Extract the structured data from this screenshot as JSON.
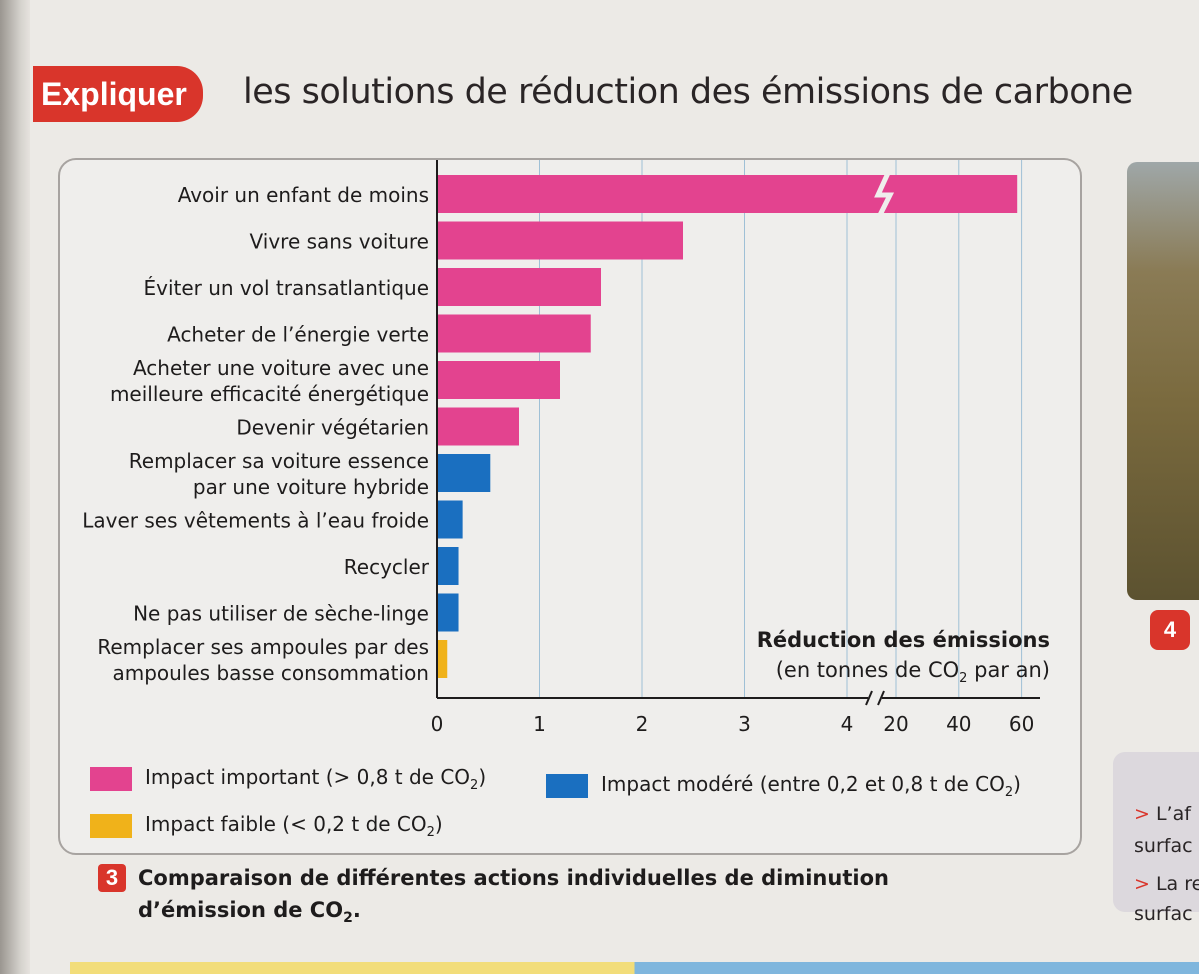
{
  "header": {
    "tag": "Expliquer",
    "title": "les solutions de réduction des émissions de carbone"
  },
  "colors": {
    "important": "#e3438f",
    "modere": "#1a6fc0",
    "faible": "#f0b21a",
    "accent": "#d9352b"
  },
  "chart_data": {
    "type": "bar",
    "orientation": "horizontal",
    "categories": [
      "Avoir un enfant de moins",
      "Vivre sans voiture",
      "Éviter un vol transatlantique",
      "Acheter de l’énergie verte",
      "Acheter une voiture avec une meilleure efficacité énergétique",
      "Devenir végétarien",
      "Remplacer sa voiture essence par une voiture hybride",
      "Laver ses vêtements à l’eau froide",
      "Recycler",
      "Ne pas utiliser de sèche-linge",
      "Remplacer ses ampoules par des ampoules basse consommation"
    ],
    "label_lines": [
      [
        "Avoir un enfant de moins"
      ],
      [
        "Vivre sans voiture"
      ],
      [
        "Éviter un vol transatlantique"
      ],
      [
        "Acheter de l’énergie verte"
      ],
      [
        "Acheter une voiture avec une",
        "meilleure efficacité énergétique"
      ],
      [
        "Devenir végétarien"
      ],
      [
        "Remplacer sa voiture essence",
        "par une voiture hybride"
      ],
      [
        "Laver ses vêtements à l’eau froide"
      ],
      [
        "Recycler"
      ],
      [
        "Ne pas utiliser de sèche-linge"
      ],
      [
        "Remplacer ses ampoules par des",
        "ampoules basse consommation"
      ]
    ],
    "values": [
      58.6,
      2.4,
      1.6,
      1.5,
      1.2,
      0.8,
      0.52,
      0.25,
      0.21,
      0.21,
      0.1
    ],
    "impact": [
      "important",
      "important",
      "important",
      "important",
      "important",
      "important",
      "modere",
      "modere",
      "modere",
      "modere",
      "faible"
    ],
    "xticks": [
      "0",
      "1",
      "2",
      "3",
      "4",
      "20",
      "40",
      "60"
    ],
    "axis_break": "between 4 and 20",
    "grid": true,
    "xlabel_line1": "Réduction des émissions",
    "xlabel_line2": "(en tonnes de CO2 par an)",
    "legend": [
      {
        "key": "important",
        "label": "Impact important (> 0,8 t de CO2)"
      },
      {
        "key": "modere",
        "label": "Impact modéré (entre 0,2 et 0,8 t de CO2)"
      },
      {
        "key": "faible",
        "label": "Impact faible (< 0,2 t de CO2)"
      }
    ]
  },
  "caption": {
    "number": "3",
    "line1": "Comparaison de différentes actions individuelles de diminution",
    "line2": "d’émission de CO2."
  },
  "side": {
    "doc_number": "4",
    "line1": "> L’af",
    "line2": "surfac",
    "line3": "> La re",
    "line4": "surfac"
  }
}
